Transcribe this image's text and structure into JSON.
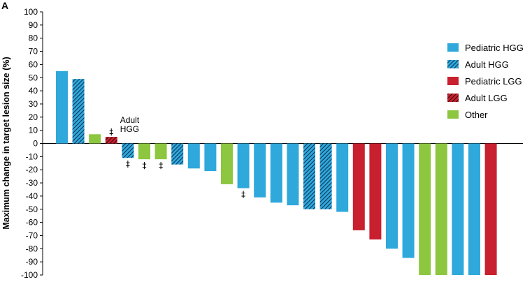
{
  "panel_label": "A",
  "chart_data": {
    "type": "bar",
    "title": "",
    "xlabel": "",
    "ylabel": "Maximum change in target lesion size (%)",
    "ylim": [
      -100,
      100
    ],
    "yticks": [
      100,
      90,
      80,
      70,
      60,
      50,
      40,
      30,
      20,
      10,
      0,
      -10,
      -20,
      -30,
      -40,
      -50,
      -60,
      -70,
      -80,
      -90,
      -100
    ],
    "grid": false,
    "legend_position": "right",
    "legend": [
      {
        "name": "Pediatric HGG",
        "color": "#2fa8dc",
        "hatched": false
      },
      {
        "name": "Adult HGG",
        "color": "#2fa8dc",
        "hatched": true
      },
      {
        "name": "Pediatric LGG",
        "color": "#c8202f",
        "hatched": false
      },
      {
        "name": "Adult LGG",
        "color": "#c8202f",
        "hatched": true
      },
      {
        "name": "Other",
        "color": "#8dc63f",
        "hatched": false
      }
    ],
    "bars": [
      {
        "value": 55,
        "group": "Pediatric HGG",
        "marker": ""
      },
      {
        "value": 49,
        "group": "Adult HGG",
        "marker": ""
      },
      {
        "value": 7,
        "group": "Other",
        "marker": ""
      },
      {
        "value": 5,
        "group": "Adult LGG",
        "marker": "‡"
      },
      {
        "value": -11,
        "group": "Adult HGG",
        "marker": "‡"
      },
      {
        "value": -12,
        "group": "Other",
        "marker": "‡"
      },
      {
        "value": -12,
        "group": "Other",
        "marker": "‡"
      },
      {
        "value": -16,
        "group": "Adult HGG",
        "marker": ""
      },
      {
        "value": -19,
        "group": "Pediatric HGG",
        "marker": ""
      },
      {
        "value": -21,
        "group": "Pediatric HGG",
        "marker": ""
      },
      {
        "value": -31,
        "group": "Other",
        "marker": ""
      },
      {
        "value": -34,
        "group": "Pediatric HGG",
        "marker": "‡"
      },
      {
        "value": -41,
        "group": "Pediatric HGG",
        "marker": ""
      },
      {
        "value": -45,
        "group": "Pediatric HGG",
        "marker": ""
      },
      {
        "value": -47,
        "group": "Pediatric HGG",
        "marker": ""
      },
      {
        "value": -50,
        "group": "Adult HGG",
        "marker": ""
      },
      {
        "value": -50,
        "group": "Adult HGG",
        "marker": ""
      },
      {
        "value": -52,
        "group": "Pediatric HGG",
        "marker": ""
      },
      {
        "value": -66,
        "group": "Pediatric LGG",
        "marker": ""
      },
      {
        "value": -73,
        "group": "Pediatric LGG",
        "marker": ""
      },
      {
        "value": -80,
        "group": "Pediatric HGG",
        "marker": ""
      },
      {
        "value": -87,
        "group": "Pediatric HGG",
        "marker": ""
      },
      {
        "value": -100,
        "group": "Other",
        "marker": ""
      },
      {
        "value": -100,
        "group": "Other",
        "marker": ""
      },
      {
        "value": -100,
        "group": "Pediatric HGG",
        "marker": ""
      },
      {
        "value": -100,
        "group": "Pediatric HGG",
        "marker": ""
      },
      {
        "value": -100,
        "group": "Pediatric LGG",
        "marker": ""
      }
    ],
    "annotations": [
      {
        "text_lines": [
          "Adult",
          "HGG"
        ],
        "bar_index": 3
      }
    ]
  }
}
